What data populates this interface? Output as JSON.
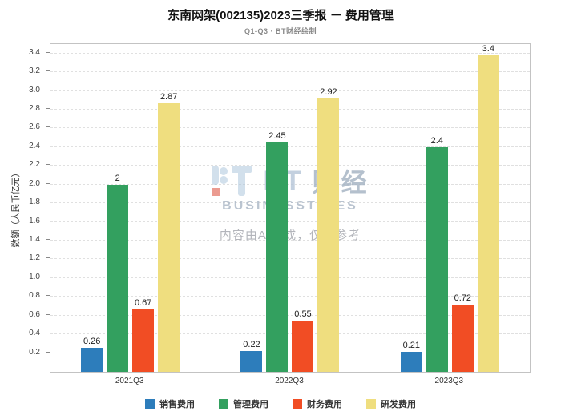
{
  "title": "东南网架(002135)2023三季报 － 费用管理",
  "subtitle": "Q1-Q3 · BT财经绘制",
  "watermark": {
    "bt": "BT",
    "cn": "财经",
    "sub": "BUSINESSTIMES",
    "disclaimer": "内容由AI生成，仅供参考"
  },
  "chart_data": {
    "type": "bar",
    "title": "东南网架(002135)2023三季报 － 费用管理",
    "subtitle": "Q1-Q3 · BT财经绘制",
    "xlabel": "",
    "ylabel": "数额（人民币亿元）",
    "categories": [
      "2021Q3",
      "2022Q3",
      "2023Q3"
    ],
    "series": [
      {
        "name": "销售费用",
        "color": "#2d7dbb",
        "values": [
          0.26,
          0.22,
          0.21
        ]
      },
      {
        "name": "管理费用",
        "color": "#33a05f",
        "values": [
          2,
          2.45,
          2.4
        ]
      },
      {
        "name": "财务费用",
        "color": "#f14d24",
        "values": [
          0.67,
          0.55,
          0.72
        ]
      },
      {
        "name": "研发费用",
        "color": "#efde7f",
        "values": [
          2.87,
          2.92,
          3.4
        ]
      }
    ],
    "value_labels": [
      [
        "0.26",
        "0.22",
        "0.21"
      ],
      [
        "2",
        "2.45",
        "2.4"
      ],
      [
        "0.67",
        "0.55",
        "0.72"
      ],
      [
        "2.87",
        "2.92",
        "3.4"
      ]
    ],
    "ylim": [
      0,
      3.5
    ],
    "yticks": [
      0.2,
      0.4,
      0.6,
      0.8,
      1.0,
      1.2,
      1.4,
      1.6,
      1.8,
      2.0,
      2.2,
      2.4,
      2.6,
      2.8,
      3.0,
      3.2,
      3.4
    ],
    "grid": true,
    "legend_position": "bottom"
  }
}
